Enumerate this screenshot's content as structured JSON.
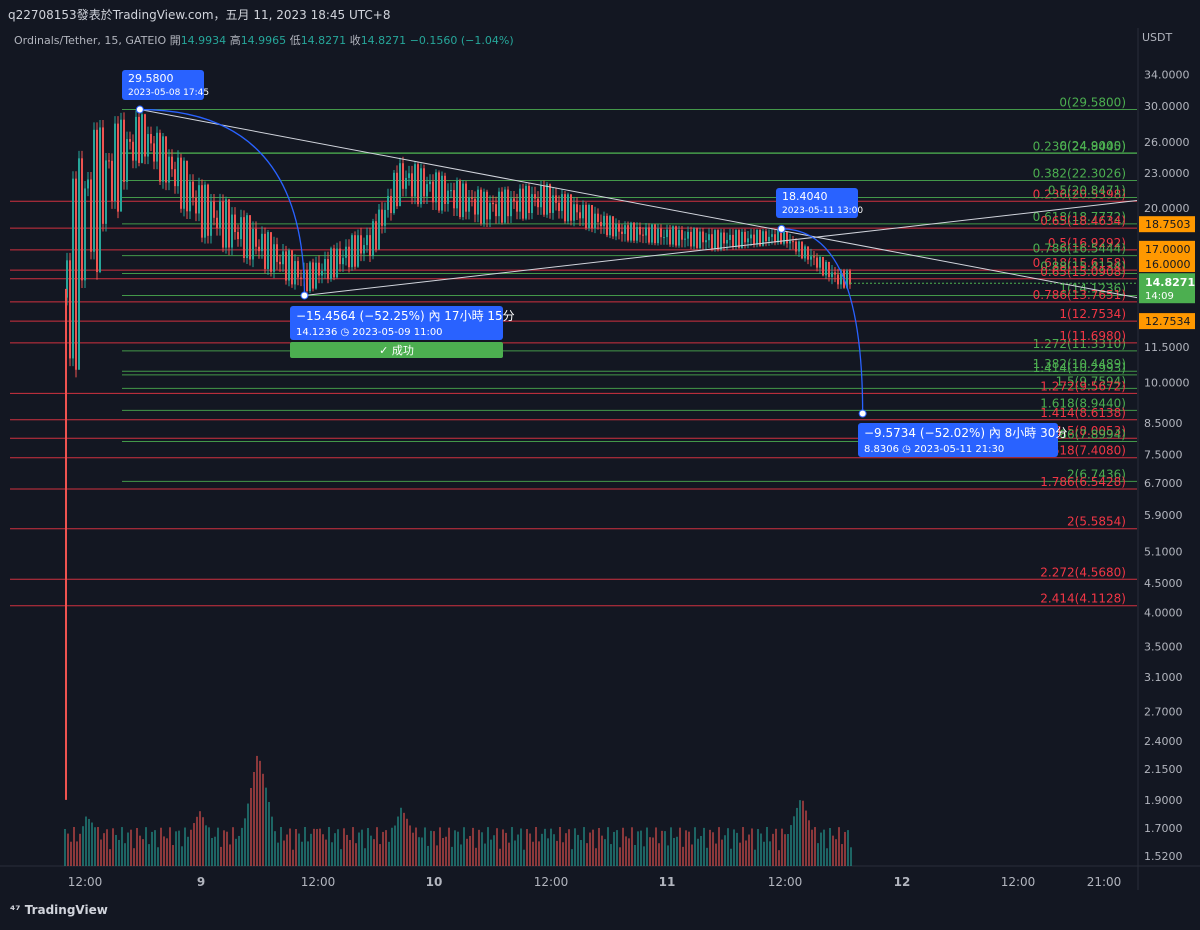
{
  "header": {
    "publisher_line": "q22708153發表於TradingView.com，五月 11, 2023 18:45 UTC+8",
    "symbol": "Ordinals/Tether, 15, GATEIO",
    "open_label": "開",
    "open": "14.9934",
    "high_label": "高",
    "high": "14.9965",
    "low_label": "低",
    "low": "14.8271",
    "close_label": "收",
    "close": "14.8271",
    "change": "−0.1560 (−1.04%)",
    "currency": "USDT"
  },
  "branding": "TradingView",
  "colors": {
    "background": "#131722",
    "up": "#26a69a",
    "down": "#ef5350",
    "fib_green": "#4caf50",
    "fib_red": "#f23645",
    "tag_orange": "#ff9800",
    "tag_blue": "#2962ff",
    "price_tag": "#4caf50",
    "success": "#4caf50"
  },
  "chart_data": {
    "type": "candlestick",
    "scale": "log",
    "ylim": [
      1.4,
      40
    ],
    "y_ticks": [
      "34.0000",
      "30.0000",
      "26.0000",
      "23.0000",
      "20.0000",
      "17.0000",
      "16.0000",
      "12.7534",
      "11.5000",
      "10.0000",
      "8.5000",
      "7.5000",
      "6.7000",
      "5.9000",
      "5.1000",
      "4.5000",
      "4.0000",
      "3.5000",
      "3.1000",
      "2.7000",
      "2.4000",
      "2.1500",
      "1.9000",
      "1.7000",
      "1.5200"
    ],
    "x_ticks": [
      "12:00",
      "9",
      "12:00",
      "10",
      "12:00",
      "11",
      "12:00",
      "12",
      "12:00",
      "21:00"
    ],
    "price_close": "14.8271",
    "price_countdown": "14:09",
    "price_tags": [
      {
        "label": "18.7503",
        "value": 18.7503,
        "color": "#ff9800"
      },
      {
        "label": "17.0000",
        "value": 17.0,
        "color": "#ff9800"
      },
      {
        "label": "16.0000",
        "value": 16.0,
        "color": "#ff9800"
      },
      {
        "label": "12.7534",
        "value": 12.7534,
        "color": "#ff9800"
      }
    ],
    "fib_levels": [
      {
        "label": "0(29.5800)",
        "value": 29.58,
        "color": "#4caf50"
      },
      {
        "label": "0.236(24.8445)",
        "value": 24.8445,
        "color": "#4caf50"
      },
      {
        "label": "0(24.9000)",
        "value": 24.9,
        "color": "#4caf50"
      },
      {
        "label": "0.382(22.3026)",
        "value": 22.3026,
        "color": "#4caf50"
      },
      {
        "label": "0.236(20.5398)",
        "value": 20.5398,
        "color": "#f23645"
      },
      {
        "label": "0.5(20.8471)",
        "value": 20.8471,
        "color": "#4caf50"
      },
      {
        "label": "0.618(18.7772)",
        "value": 18.7772,
        "color": "#4caf50"
      },
      {
        "label": "0.65(18.4634)",
        "value": 18.4634,
        "color": "#f23645"
      },
      {
        "label": "0.5(16.9292)",
        "value": 16.9292,
        "color": "#f23645"
      },
      {
        "label": "0.786(16.5444)",
        "value": 16.5444,
        "color": "#4caf50"
      },
      {
        "label": "0.618(15.6158)",
        "value": 15.6158,
        "color": "#f23645"
      },
      {
        "label": "0.88(15.4134)",
        "value": 15.4134,
        "color": "#4caf50"
      },
      {
        "label": "0.65(15.0908)",
        "value": 15.0908,
        "color": "#f23645"
      },
      {
        "label": "1(14.1236)",
        "value": 14.1236,
        "color": "#4caf50"
      },
      {
        "label": "0.786(13.7651)",
        "value": 13.7651,
        "color": "#f23645"
      },
      {
        "label": "1(12.7534)",
        "value": 12.7534,
        "color": "#f23645"
      },
      {
        "label": "1.272(11.3310)",
        "value": 11.331,
        "color": "#4caf50"
      },
      {
        "label": "1(11.6980)",
        "value": 11.698,
        "color": "#f23645"
      },
      {
        "label": "1.382(10.4489)",
        "value": 10.4489,
        "color": "#4caf50"
      },
      {
        "label": "1.414(10.2993)",
        "value": 10.2993,
        "color": "#4caf50"
      },
      {
        "label": "1.5(9.7594)",
        "value": 9.7594,
        "color": "#4caf50"
      },
      {
        "label": "1.272(9.5672)",
        "value": 9.5672,
        "color": "#f23645"
      },
      {
        "label": "1.618(8.9440)",
        "value": 8.944,
        "color": "#4caf50"
      },
      {
        "label": "1.414(8.6138)",
        "value": 8.6138,
        "color": "#f23645"
      },
      {
        "label": "1.5(8.0053)",
        "value": 8.0053,
        "color": "#f23645"
      },
      {
        "label": "1.786(7.8994)",
        "value": 7.8994,
        "color": "#4caf50"
      },
      {
        "label": "1.618(7.4080)",
        "value": 7.408,
        "color": "#f23645"
      },
      {
        "label": "2(6.7436)",
        "value": 6.7436,
        "color": "#4caf50"
      },
      {
        "label": "1.786(6.5428)",
        "value": 6.5428,
        "color": "#f23645"
      },
      {
        "label": "2(5.5854)",
        "value": 5.5854,
        "color": "#f23645"
      },
      {
        "label": "2.272(4.5680)",
        "value": 4.568,
        "color": "#f23645"
      },
      {
        "label": "2.414(4.1128)",
        "value": 4.1128,
        "color": "#f23645"
      }
    ],
    "annotations": [
      {
        "kind": "point",
        "value": "29.5800",
        "time": "2023-05-08 17:45"
      },
      {
        "kind": "point",
        "value": "18.4040",
        "time": "2023-05-11 13:00"
      },
      {
        "kind": "projection",
        "text": "−15.4564 (−52.25%) 內 17小時 15分",
        "sub": "14.1236 ◷ 2023-05-09  11:00",
        "status": "✓ 成功"
      },
      {
        "kind": "projection",
        "text": "−9.5734 (−52.02%) 內 8小時 30分",
        "sub": "8.8306 ◷ 2023-05-11  21:30"
      }
    ],
    "price_series_approx": [
      {
        "t": "05-08 08:00",
        "low": 2.0,
        "high": 14.5
      },
      {
        "t": "05-08 12:00",
        "low": 12.5,
        "high": 28.5
      },
      {
        "t": "05-08 17:45",
        "low": 24.0,
        "high": 29.58
      },
      {
        "t": "05-09 00:00",
        "low": 17.5,
        "high": 22.5
      },
      {
        "t": "05-09 11:00",
        "low": 14.12,
        "high": 16.0
      },
      {
        "t": "05-09 18:00",
        "low": 16.2,
        "high": 19.0
      },
      {
        "t": "05-09 21:00",
        "low": 20.5,
        "high": 24.6
      },
      {
        "t": "05-10 06:00",
        "low": 18.5,
        "high": 21.5
      },
      {
        "t": "05-10 12:00",
        "low": 19.3,
        "high": 22.3
      },
      {
        "t": "05-10 20:00",
        "low": 17.5,
        "high": 19.0
      },
      {
        "t": "05-11 06:00",
        "low": 16.8,
        "high": 18.4
      },
      {
        "t": "05-11 13:00",
        "low": 17.3,
        "high": 18.404
      },
      {
        "t": "05-11 18:45",
        "low": 14.5,
        "high": 15.7
      }
    ],
    "volume_approx": [
      {
        "t": "05-08 08:00",
        "v": 1.0
      },
      {
        "t": "05-08 12:00",
        "v": 0.55
      },
      {
        "t": "05-09 00:00",
        "v": 0.45
      },
      {
        "t": "05-09 06:00",
        "v": 0.9
      },
      {
        "t": "05-09 12:00",
        "v": 0.4
      },
      {
        "t": "05-09 21:00",
        "v": 0.5
      },
      {
        "t": "05-10 12:00",
        "v": 0.3
      },
      {
        "t": "05-11 00:00",
        "v": 0.2
      },
      {
        "t": "05-11 15:00",
        "v": 0.55
      }
    ]
  }
}
